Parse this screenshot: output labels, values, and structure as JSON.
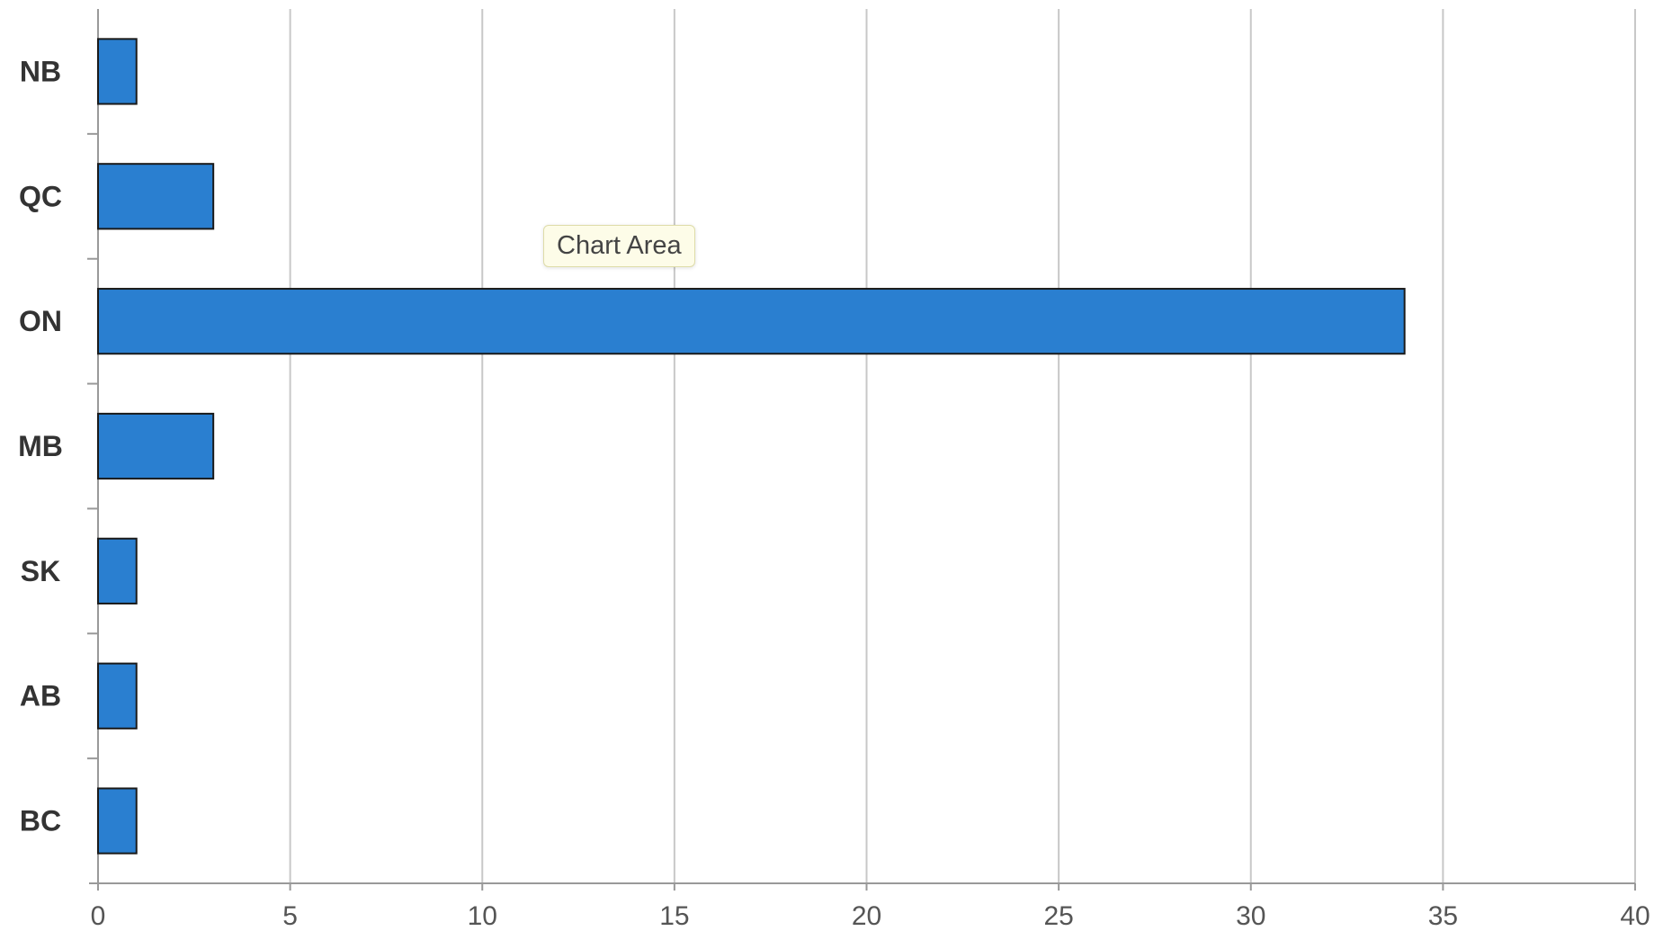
{
  "chart_data": {
    "type": "bar",
    "orientation": "horizontal",
    "title": "",
    "xlabel": "",
    "ylabel": "",
    "categories": [
      "NB",
      "QC",
      "ON",
      "MB",
      "SK",
      "AB",
      "BC"
    ],
    "values": [
      1,
      3,
      34,
      3,
      1,
      1,
      1
    ],
    "xlim": [
      0,
      40
    ],
    "xticks": [
      "0",
      "5",
      "10",
      "15",
      "20",
      "25",
      "30",
      "35",
      "40"
    ],
    "grid": "vertical",
    "legend": "none",
    "bar_color": "#2a7fd0",
    "bar_edge_color": "#1a1a1a",
    "grid_color": "#c8c8c8"
  },
  "tooltip": {
    "text": "Chart Area"
  }
}
